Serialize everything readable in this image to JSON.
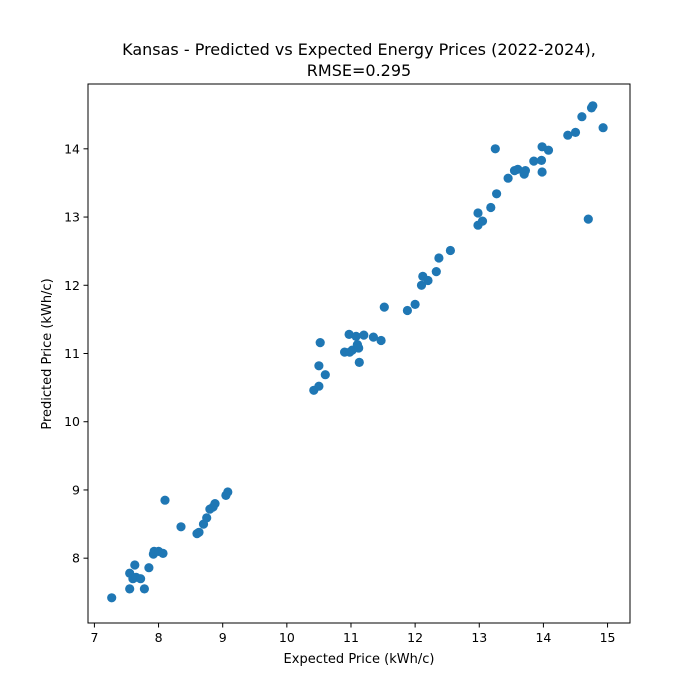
{
  "chart_data": {
    "type": "scatter",
    "title": "Kansas - Predicted vs Expected Energy Prices (2022-2024),",
    "subtitle": "RMSE=0.295",
    "xlabel": "Expected Price (kWh/c)",
    "ylabel": "Predicted Price (kWh/c)",
    "xlim": [
      6.9,
      15.35
    ],
    "ylim": [
      7.05,
      14.95
    ],
    "xticks": [
      7,
      8,
      9,
      10,
      11,
      12,
      13,
      14,
      15
    ],
    "yticks": [
      8,
      9,
      10,
      11,
      12,
      13,
      14
    ],
    "grid": false,
    "color": "#1f77b4",
    "points": [
      [
        7.27,
        7.42
      ],
      [
        7.55,
        7.55
      ],
      [
        7.55,
        7.78
      ],
      [
        7.6,
        7.7
      ],
      [
        7.63,
        7.9
      ],
      [
        7.65,
        7.72
      ],
      [
        7.72,
        7.7
      ],
      [
        7.78,
        7.55
      ],
      [
        7.85,
        7.86
      ],
      [
        7.92,
        8.06
      ],
      [
        7.93,
        8.1
      ],
      [
        8.0,
        8.1
      ],
      [
        8.07,
        8.07
      ],
      [
        8.1,
        8.85
      ],
      [
        8.35,
        8.46
      ],
      [
        8.6,
        8.36
      ],
      [
        8.63,
        8.38
      ],
      [
        8.7,
        8.5
      ],
      [
        8.75,
        8.59
      ],
      [
        8.8,
        8.72
      ],
      [
        8.85,
        8.75
      ],
      [
        8.88,
        8.8
      ],
      [
        9.05,
        8.92
      ],
      [
        9.08,
        8.97
      ],
      [
        10.42,
        10.46
      ],
      [
        10.5,
        10.52
      ],
      [
        10.5,
        10.82
      ],
      [
        10.52,
        11.16
      ],
      [
        10.6,
        10.69
      ],
      [
        10.9,
        11.02
      ],
      [
        10.97,
        11.28
      ],
      [
        10.98,
        11.02
      ],
      [
        11.02,
        11.05
      ],
      [
        11.08,
        11.25
      ],
      [
        11.1,
        11.13
      ],
      [
        11.12,
        11.08
      ],
      [
        11.13,
        10.87
      ],
      [
        11.2,
        11.27
      ],
      [
        11.35,
        11.24
      ],
      [
        11.47,
        11.19
      ],
      [
        11.52,
        11.68
      ],
      [
        11.88,
        11.63
      ],
      [
        12.0,
        11.72
      ],
      [
        12.1,
        12.0
      ],
      [
        12.12,
        12.13
      ],
      [
        12.2,
        12.07
      ],
      [
        12.33,
        12.2
      ],
      [
        12.37,
        12.4
      ],
      [
        12.55,
        12.51
      ],
      [
        12.98,
        12.88
      ],
      [
        12.98,
        13.06
      ],
      [
        13.05,
        12.94
      ],
      [
        13.18,
        13.14
      ],
      [
        13.25,
        14.0
      ],
      [
        13.27,
        13.34
      ],
      [
        13.45,
        13.57
      ],
      [
        13.55,
        13.68
      ],
      [
        13.6,
        13.7
      ],
      [
        13.7,
        13.63
      ],
      [
        13.72,
        13.68
      ],
      [
        13.85,
        13.82
      ],
      [
        13.97,
        13.83
      ],
      [
        13.98,
        13.66
      ],
      [
        13.98,
        14.03
      ],
      [
        14.08,
        13.98
      ],
      [
        14.38,
        14.2
      ],
      [
        14.5,
        14.24
      ],
      [
        14.6,
        14.47
      ],
      [
        14.7,
        12.97
      ],
      [
        14.75,
        14.6
      ],
      [
        14.77,
        14.63
      ],
      [
        14.93,
        14.31
      ]
    ]
  }
}
